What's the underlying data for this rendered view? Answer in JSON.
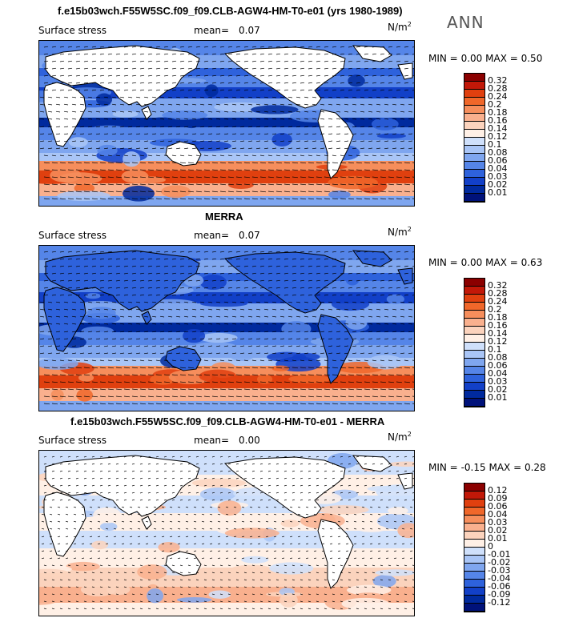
{
  "season": "ANN",
  "panels": [
    {
      "title": "f.e15b03wch.F55W5SC.f09_f09.CLB-AGW4-HM-T0-e01 (yrs 1980-1989)",
      "variable": "Surface stress",
      "mean_label": "mean=",
      "mean_value": "0.07",
      "units": "N/m",
      "units_exp": "2",
      "min_label": "MIN =",
      "min_value": "0.00",
      "max_label": "MAX =",
      "max_value": "0.50",
      "colorbar_labels": [
        "0.32",
        "0.28",
        "0.24",
        "0.2",
        "0.18",
        "0.16",
        "0.14",
        "0.12",
        "0.1",
        "0.08",
        "0.06",
        "0.04",
        "0.03",
        "0.02",
        "0.01"
      ],
      "colorbar_colors": [
        "#8b0000",
        "#c21808",
        "#e0400f",
        "#f0672a",
        "#f68e5c",
        "#f9b08e",
        "#fbd3bd",
        "#fff0e6",
        "#cfe0fb",
        "#a9c5f6",
        "#7fa6ef",
        "#5585e8",
        "#2e62dc",
        "#1240c8",
        "#002a9e",
        "#00127a"
      ]
    },
    {
      "title": "MERRA",
      "variable": "Surface stress",
      "mean_label": "mean=",
      "mean_value": "0.07",
      "units": "N/m",
      "units_exp": "2",
      "min_label": "MIN =",
      "min_value": "0.00",
      "max_label": "MAX =",
      "max_value": "0.63",
      "colorbar_labels": [
        "0.32",
        "0.28",
        "0.24",
        "0.2",
        "0.18",
        "0.16",
        "0.14",
        "0.12",
        "0.1",
        "0.08",
        "0.06",
        "0.04",
        "0.03",
        "0.02",
        "0.01"
      ],
      "colorbar_colors": [
        "#8b0000",
        "#c21808",
        "#e0400f",
        "#f0672a",
        "#f68e5c",
        "#f9b08e",
        "#fbd3bd",
        "#fff0e6",
        "#cfe0fb",
        "#a9c5f6",
        "#7fa6ef",
        "#5585e8",
        "#2e62dc",
        "#1240c8",
        "#002a9e",
        "#00127a"
      ]
    },
    {
      "title": "f.e15b03wch.F55W5SC.f09_f09.CLB-AGW4-HM-T0-e01 - MERRA",
      "variable": "Surface stress",
      "mean_label": "mean=",
      "mean_value": "0.00",
      "units": "N/m",
      "units_exp": "2",
      "min_label": "MIN =",
      "min_value": "-0.15",
      "max_label": "MAX =",
      "max_value": "0.28",
      "colorbar_labels": [
        "0.12",
        "0.09",
        "0.06",
        "0.04",
        "0.03",
        "0.02",
        "0.01",
        "0",
        "-0.01",
        "-0.02",
        "-0.03",
        "-0.04",
        "-0.06",
        "-0.09",
        "-0.12"
      ],
      "colorbar_colors": [
        "#8b0000",
        "#c21808",
        "#e0400f",
        "#f0672a",
        "#f68e5c",
        "#f9b08e",
        "#fbd3bd",
        "#fff0e6",
        "#cfe0fb",
        "#a9c5f6",
        "#7fa6ef",
        "#5585e8",
        "#2e62dc",
        "#1240c8",
        "#002a9e",
        "#00127a"
      ]
    }
  ]
}
